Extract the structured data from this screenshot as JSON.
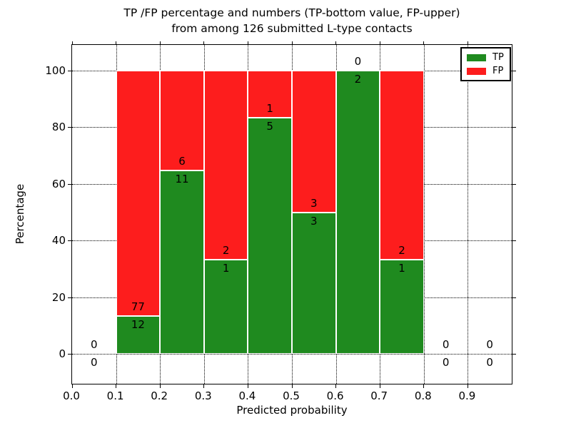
{
  "chart_data": {
    "type": "bar",
    "stacked": true,
    "title_line1": "TP /FP percentage and numbers (TP-bottom value, FP-upper)",
    "title_line2": "from among 126 submitted L-type contacts",
    "xlabel": "Predicted probability",
    "ylabel": "Percentage",
    "xlim": [
      0.0,
      1.0
    ],
    "ylim": [
      -10.5,
      109.0
    ],
    "xticks": [
      0.0,
      0.1,
      0.2,
      0.3,
      0.4,
      0.5,
      0.6,
      0.7,
      0.8,
      0.9
    ],
    "xtick_labels": [
      "0.0",
      "0.1",
      "0.2",
      "0.3",
      "0.4",
      "0.5",
      "0.6",
      "0.7",
      "0.8",
      "0.9"
    ],
    "yticks": [
      0,
      20,
      40,
      60,
      80,
      100
    ],
    "ytick_labels": [
      "0",
      "20",
      "40",
      "60",
      "80",
      "100"
    ],
    "grid_style": "dotted",
    "legend_position": "upper-right",
    "colors": {
      "tp": "#1f8a1f",
      "fp": "#fd1d1d",
      "bar_edge": "#ffffff"
    },
    "legend": [
      {
        "label": "TP"
      },
      {
        "label": "FP"
      }
    ],
    "bins": [
      {
        "x0": 0.0,
        "x1": 0.1,
        "tp": 0,
        "fp": 0
      },
      {
        "x0": 0.1,
        "x1": 0.2,
        "tp": 12,
        "fp": 77
      },
      {
        "x0": 0.2,
        "x1": 0.3,
        "tp": 11,
        "fp": 6
      },
      {
        "x0": 0.3,
        "x1": 0.4,
        "tp": 1,
        "fp": 2
      },
      {
        "x0": 0.4,
        "x1": 0.5,
        "tp": 5,
        "fp": 1
      },
      {
        "x0": 0.5,
        "x1": 0.6,
        "tp": 3,
        "fp": 3
      },
      {
        "x0": 0.6,
        "x1": 0.7,
        "tp": 2,
        "fp": 0
      },
      {
        "x0": 0.7,
        "x1": 0.8,
        "tp": 1,
        "fp": 2
      },
      {
        "x0": 0.8,
        "x1": 0.9,
        "tp": 0,
        "fp": 0
      },
      {
        "x0": 0.9,
        "x1": 1.0,
        "tp": 0,
        "fp": 0
      }
    ]
  }
}
